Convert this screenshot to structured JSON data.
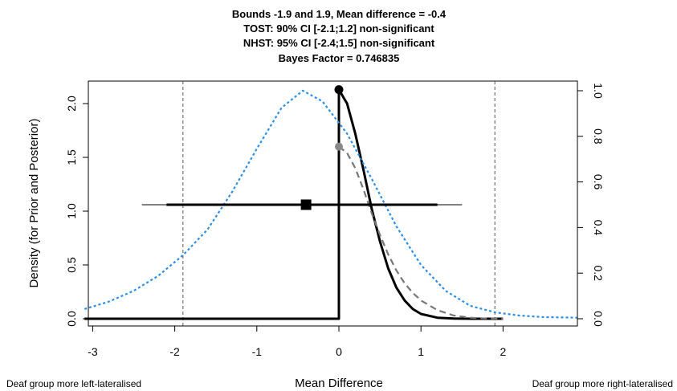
{
  "chart_data": {
    "type": "line",
    "title_lines": [
      "Bounds -1.9 and 1.9, Mean difference = -0.4",
      "TOST: 90% CI [-2.1;1.2] non-significant",
      "NHST: 95% CI [-2.4;1.5] non-significant",
      "Bayes Factor = 0.746835"
    ],
    "xlabel": "Mean Difference",
    "ylabel": "Density (for Prior and Posterior)",
    "xlim": [
      -3.1,
      2.9
    ],
    "ylim": [
      0,
      2.15
    ],
    "y2lim": [
      0,
      1.0
    ],
    "x_ticks": [
      -3,
      -2,
      -1,
      0,
      1,
      2
    ],
    "y_ticks": [
      0.0,
      0.5,
      1.0,
      1.5,
      2.0
    ],
    "y2_ticks": [
      0.0,
      0.2,
      0.4,
      0.6,
      0.8,
      1.0
    ],
    "x_tick_labels": [
      "-3",
      "-2",
      "-1",
      "0",
      "1",
      "2"
    ],
    "y_tick_labels": [
      "0.0",
      "0.5",
      "1.0",
      "1.5",
      "2.0"
    ],
    "y2_tick_labels": [
      "0.0",
      "0.2",
      "0.4",
      "0.6",
      "0.8",
      "1.0"
    ],
    "equivalence_bounds": [
      -1.9,
      1.9
    ],
    "mean_difference": -0.4,
    "ci_90": [
      -2.1,
      1.2
    ],
    "ci_95": [
      -2.4,
      1.5
    ],
    "estimate_y": 1.06,
    "annotations": {
      "left": "Deaf group more left-lateralised",
      "right": "Deaf group more right-lateralised"
    },
    "series": [
      {
        "style": "solid-black",
        "x": [
          -3.1,
          0,
          0,
          0.1,
          0.2,
          0.3,
          0.4,
          0.5,
          0.6,
          0.7,
          0.8,
          0.9,
          1.0,
          1.2,
          1.4,
          1.6,
          1.8,
          2.0
        ],
        "y": [
          0,
          0,
          2.13,
          2.0,
          1.72,
          1.38,
          1.02,
          0.72,
          0.47,
          0.29,
          0.17,
          0.09,
          0.045,
          0.01,
          0.002,
          0.0,
          0.0,
          0.0
        ]
      },
      {
        "style": "dashed-gray",
        "x": [
          0,
          0.1,
          0.2,
          0.3,
          0.4,
          0.5,
          0.6,
          0.7,
          0.8,
          0.9,
          1.0,
          1.2,
          1.4,
          1.6,
          1.8,
          2.0
        ],
        "y": [
          1.6,
          1.54,
          1.4,
          1.2,
          0.98,
          0.78,
          0.6,
          0.45,
          0.33,
          0.24,
          0.17,
          0.08,
          0.03,
          0.01,
          0.002,
          0.0
        ]
      },
      {
        "style": "dotted-blue",
        "x": [
          -3.1,
          -2.8,
          -2.5,
          -2.2,
          -1.9,
          -1.6,
          -1.3,
          -1.0,
          -0.7,
          -0.44,
          -0.2,
          0.1,
          0.4,
          0.7,
          1.0,
          1.3,
          1.6,
          1.9,
          2.2,
          2.5,
          2.9
        ],
        "y": [
          0.09,
          0.16,
          0.26,
          0.4,
          0.59,
          0.83,
          1.18,
          1.58,
          1.96,
          2.12,
          2.02,
          1.72,
          1.3,
          0.86,
          0.5,
          0.26,
          0.12,
          0.06,
          0.03,
          0.015,
          0.01
        ]
      }
    ],
    "points": [
      {
        "label": "max",
        "x": 0,
        "y": 2.13,
        "color": "#000000"
      },
      {
        "label": "prior-at-zero",
        "x": 0,
        "y": 1.6,
        "color": "#888888"
      }
    ],
    "colors": {
      "prior": "#2a8ee8",
      "posterior": "#000000",
      "likelihood": "#777777"
    }
  }
}
